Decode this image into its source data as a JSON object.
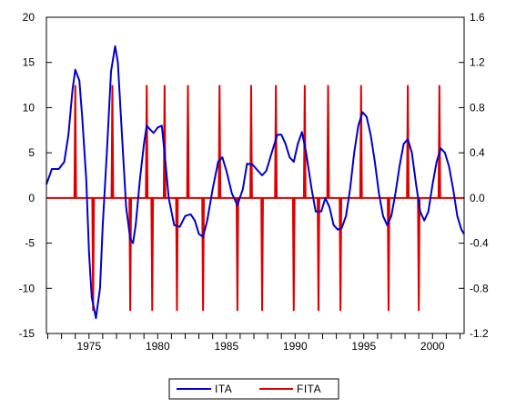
{
  "chart_data": {
    "type": "line",
    "title": "",
    "xlabel": "",
    "ylabel": "",
    "xlim": [
      1971.9,
      2002.3
    ],
    "ylim": [
      -15,
      20
    ],
    "y2lim": [
      -1.2,
      1.6
    ],
    "grid": false,
    "legend_position": "bottom-center",
    "x_ticks": [
      1975,
      1980,
      1985,
      1990,
      1995,
      2000
    ],
    "x_tick_labels": [
      "1975",
      "1980",
      "1985",
      "1990",
      "1995",
      "2000"
    ],
    "y_ticks": [
      -15,
      -10,
      -5,
      0,
      5,
      10,
      15,
      20
    ],
    "y_tick_labels": [
      "-15",
      "-10",
      "-5",
      "0",
      "5",
      "10",
      "15",
      "20"
    ],
    "y2_ticks": [
      -1.2,
      -0.8,
      -0.4,
      0.0,
      0.4,
      0.8,
      1.2,
      1.6
    ],
    "y2_tick_labels": [
      "-1.2",
      "-0.8",
      "-0.4",
      "0.0",
      "0.4",
      "0.8",
      "1.2",
      "1.6"
    ],
    "series": [
      {
        "name": "ITA",
        "axis": "left",
        "color": "#0000cc",
        "points": [
          [
            1971.9,
            1.5
          ],
          [
            1972.3,
            3.2
          ],
          [
            1972.8,
            3.2
          ],
          [
            1973.2,
            4.0
          ],
          [
            1973.5,
            7.0
          ],
          [
            1973.8,
            12.0
          ],
          [
            1974.0,
            14.2
          ],
          [
            1974.3,
            13.0
          ],
          [
            1974.5,
            9.0
          ],
          [
            1974.8,
            2.0
          ],
          [
            1975.0,
            -6.0
          ],
          [
            1975.2,
            -11.0
          ],
          [
            1975.5,
            -13.3
          ],
          [
            1975.8,
            -10.0
          ],
          [
            1976.0,
            -3.0
          ],
          [
            1976.3,
            5.0
          ],
          [
            1976.6,
            14.0
          ],
          [
            1976.9,
            16.8
          ],
          [
            1977.1,
            15.0
          ],
          [
            1977.4,
            7.0
          ],
          [
            1977.7,
            -1.0
          ],
          [
            1978.0,
            -4.5
          ],
          [
            1978.2,
            -5.0
          ],
          [
            1978.4,
            -3.0
          ],
          [
            1978.7,
            2.0
          ],
          [
            1979.0,
            6.0
          ],
          [
            1979.2,
            8.0
          ],
          [
            1979.5,
            7.5
          ],
          [
            1979.7,
            7.2
          ],
          [
            1980.0,
            7.8
          ],
          [
            1980.3,
            8.0
          ],
          [
            1980.5,
            5.0
          ],
          [
            1980.8,
            0.0
          ],
          [
            1981.2,
            -3.0
          ],
          [
            1981.6,
            -3.2
          ],
          [
            1982.0,
            -2.0
          ],
          [
            1982.4,
            -1.8
          ],
          [
            1982.7,
            -2.5
          ],
          [
            1983.0,
            -4.0
          ],
          [
            1983.3,
            -4.3
          ],
          [
            1983.6,
            -2.5
          ],
          [
            1984.0,
            1.0
          ],
          [
            1984.4,
            4.0
          ],
          [
            1984.7,
            4.5
          ],
          [
            1985.0,
            3.0
          ],
          [
            1985.4,
            0.5
          ],
          [
            1985.8,
            -0.8
          ],
          [
            1986.2,
            1.0
          ],
          [
            1986.5,
            3.8
          ],
          [
            1986.9,
            3.7
          ],
          [
            1987.3,
            3.0
          ],
          [
            1987.6,
            2.5
          ],
          [
            1987.9,
            3.0
          ],
          [
            1988.3,
            5.0
          ],
          [
            1988.7,
            7.0
          ],
          [
            1989.0,
            7.0
          ],
          [
            1989.3,
            6.0
          ],
          [
            1989.6,
            4.5
          ],
          [
            1989.9,
            4.0
          ],
          [
            1990.2,
            6.0
          ],
          [
            1990.5,
            7.3
          ],
          [
            1990.8,
            5.0
          ],
          [
            1991.2,
            1.0
          ],
          [
            1991.5,
            -1.5
          ],
          [
            1991.9,
            -1.5
          ],
          [
            1992.2,
            0.0
          ],
          [
            1992.5,
            -1.0
          ],
          [
            1992.8,
            -3.0
          ],
          [
            1993.1,
            -3.5
          ],
          [
            1993.4,
            -3.3
          ],
          [
            1993.7,
            -2.0
          ],
          [
            1994.0,
            1.0
          ],
          [
            1994.3,
            5.0
          ],
          [
            1994.6,
            8.0
          ],
          [
            1994.9,
            9.5
          ],
          [
            1995.2,
            9.0
          ],
          [
            1995.5,
            7.0
          ],
          [
            1995.8,
            4.0
          ],
          [
            1996.1,
            0.5
          ],
          [
            1996.4,
            -2.0
          ],
          [
            1996.7,
            -3.0
          ],
          [
            1997.0,
            -2.0
          ],
          [
            1997.3,
            0.5
          ],
          [
            1997.6,
            3.5
          ],
          [
            1997.9,
            6.0
          ],
          [
            1998.2,
            6.5
          ],
          [
            1998.5,
            5.0
          ],
          [
            1998.8,
            1.5
          ],
          [
            1999.1,
            -1.5
          ],
          [
            1999.4,
            -2.5
          ],
          [
            1999.7,
            -1.5
          ],
          [
            2000.0,
            1.5
          ],
          [
            2000.3,
            4.0
          ],
          [
            2000.6,
            5.5
          ],
          [
            2000.9,
            5.0
          ],
          [
            2001.2,
            3.5
          ],
          [
            2001.5,
            1.0
          ],
          [
            2001.8,
            -2.0
          ],
          [
            2002.1,
            -3.5
          ],
          [
            2002.3,
            -4.0
          ]
        ]
      },
      {
        "name": "FITA",
        "axis": "right",
        "color": "#dd0000",
        "baseline": 0.0,
        "spikes": [
          [
            1974.0,
            1.0
          ],
          [
            1975.3,
            -1.0
          ],
          [
            1976.7,
            1.0
          ],
          [
            1978.0,
            -1.0
          ],
          [
            1979.2,
            1.0
          ],
          [
            1979.6,
            -1.0
          ],
          [
            1980.5,
            1.0
          ],
          [
            1981.4,
            -1.0
          ],
          [
            1982.2,
            1.0
          ],
          [
            1983.3,
            -1.0
          ],
          [
            1984.5,
            1.0
          ],
          [
            1985.8,
            -1.0
          ],
          [
            1986.8,
            1.0
          ],
          [
            1987.6,
            -1.0
          ],
          [
            1988.6,
            1.0
          ],
          [
            1989.9,
            -1.0
          ],
          [
            1990.7,
            1.0
          ],
          [
            1991.7,
            -1.0
          ],
          [
            1992.4,
            1.0
          ],
          [
            1993.3,
            -1.0
          ],
          [
            1994.8,
            1.0
          ],
          [
            1996.8,
            -1.0
          ],
          [
            1998.2,
            1.0
          ],
          [
            1999.0,
            -1.0
          ],
          [
            2000.5,
            1.0
          ]
        ]
      }
    ]
  }
}
